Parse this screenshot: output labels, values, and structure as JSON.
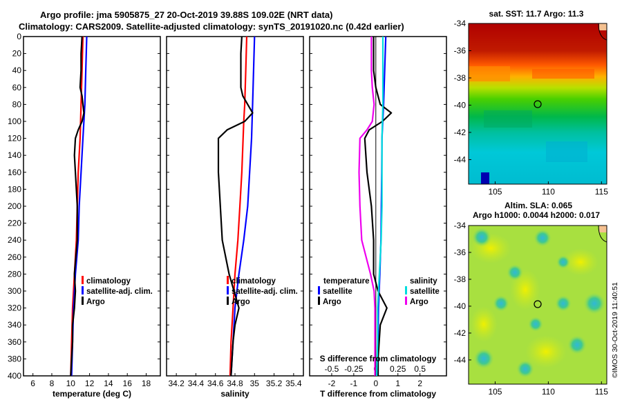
{
  "header": {
    "title_line1": "Argo profile: jma 5905875_27 20-Oct-2019 39.88S 109.02E (NRT data)",
    "title_line2": "Climatology: CARS2009. Satellite-adjusted climatology: synTS_20191020.nc (0.42d earlier)"
  },
  "footer": {
    "stamp": "©IMOS 30-Oct-2019 11:40:51"
  },
  "colors": {
    "climatology": "#ff0000",
    "satellite": "#0000ff",
    "argo": "#000000",
    "cyan": "#00dddd",
    "magenta": "#ee00ee"
  },
  "chart_data": [
    {
      "type": "line",
      "name": "temperature-profile",
      "xlabel": "temperature (deg C)",
      "xlim": [
        5,
        19.5
      ],
      "ylim": [
        400,
        0
      ],
      "xticks": [
        6,
        8,
        10,
        12,
        14,
        16,
        18
      ],
      "yticks": [
        0,
        20,
        40,
        60,
        80,
        100,
        120,
        140,
        160,
        180,
        200,
        220,
        240,
        260,
        280,
        300,
        320,
        340,
        360,
        380,
        400
      ],
      "legend": [
        "climatology",
        "satellite-adj. clim.",
        "Argo"
      ],
      "series": [
        {
          "name": "climatology",
          "color": "#ff0000",
          "points": [
            [
              11.3,
              0
            ],
            [
              11.2,
              40
            ],
            [
              11.1,
              80
            ],
            [
              11.0,
              120
            ],
            [
              10.8,
              160
            ],
            [
              10.7,
              200
            ],
            [
              10.6,
              240
            ],
            [
              10.4,
              280
            ],
            [
              10.2,
              320
            ],
            [
              10.1,
              360
            ],
            [
              10.0,
              400
            ]
          ]
        },
        {
          "name": "satellite-adj. clim.",
          "color": "#0000ff",
          "points": [
            [
              11.7,
              0
            ],
            [
              11.6,
              40
            ],
            [
              11.5,
              80
            ],
            [
              11.3,
              120
            ],
            [
              11.1,
              160
            ],
            [
              10.9,
              200
            ],
            [
              10.8,
              240
            ],
            [
              10.5,
              280
            ],
            [
              10.3,
              320
            ],
            [
              10.2,
              360
            ],
            [
              10.1,
              400
            ]
          ]
        },
        {
          "name": "Argo",
          "color": "#000000",
          "points": [
            [
              11.2,
              0
            ],
            [
              11.1,
              20
            ],
            [
              11.1,
              40
            ],
            [
              11.0,
              60
            ],
            [
              11.1,
              65
            ],
            [
              11.2,
              70
            ],
            [
              11.3,
              80
            ],
            [
              11.4,
              90
            ],
            [
              11.2,
              100
            ],
            [
              10.8,
              110
            ],
            [
              10.5,
              120
            ],
            [
              10.4,
              140
            ],
            [
              10.5,
              160
            ],
            [
              10.7,
              200
            ],
            [
              10.7,
              240
            ],
            [
              10.4,
              280
            ],
            [
              10.5,
              300
            ],
            [
              10.4,
              320
            ],
            [
              10.2,
              340
            ],
            [
              10.2,
              360
            ],
            [
              10.1,
              380
            ],
            [
              10.0,
              400
            ]
          ]
        }
      ]
    },
    {
      "type": "line",
      "name": "salinity-profile",
      "xlabel": "salinity",
      "xlim": [
        34.1,
        35.5
      ],
      "ylim": [
        400,
        0
      ],
      "xticks": [
        "34.2",
        "34.4",
        "34.6",
        "34.8",
        "35",
        "35.2",
        "35.4"
      ],
      "legend": [
        "climatology",
        "satellite-adj. clim.",
        "Argo"
      ],
      "series": [
        {
          "name": "climatology",
          "color": "#ff0000",
          "points": [
            [
              34.92,
              0
            ],
            [
              34.91,
              40
            ],
            [
              34.9,
              80
            ],
            [
              34.89,
              100
            ],
            [
              34.87,
              160
            ],
            [
              34.85,
              200
            ],
            [
              34.83,
              240
            ],
            [
              34.8,
              280
            ],
            [
              34.78,
              320
            ],
            [
              34.76,
              360
            ],
            [
              34.75,
              400
            ]
          ]
        },
        {
          "name": "satellite-adj. clim.",
          "color": "#0000ff",
          "points": [
            [
              35.0,
              0
            ],
            [
              34.99,
              40
            ],
            [
              34.98,
              80
            ],
            [
              34.97,
              120
            ],
            [
              34.95,
              160
            ],
            [
              34.93,
              200
            ],
            [
              34.89,
              240
            ],
            [
              34.84,
              280
            ],
            [
              34.8,
              320
            ],
            [
              34.78,
              360
            ],
            [
              34.76,
              400
            ]
          ]
        },
        {
          "name": "Argo",
          "color": "#000000",
          "points": [
            [
              34.87,
              0
            ],
            [
              34.86,
              20
            ],
            [
              34.86,
              40
            ],
            [
              34.86,
              60
            ],
            [
              34.88,
              70
            ],
            [
              34.93,
              80
            ],
            [
              34.98,
              90
            ],
            [
              34.9,
              100
            ],
            [
              34.72,
              110
            ],
            [
              34.63,
              120
            ],
            [
              34.63,
              160
            ],
            [
              34.65,
              200
            ],
            [
              34.67,
              240
            ],
            [
              34.74,
              280
            ],
            [
              34.79,
              300
            ],
            [
              34.84,
              320
            ],
            [
              34.8,
              340
            ],
            [
              34.78,
              360
            ],
            [
              34.76,
              400
            ]
          ]
        }
      ]
    },
    {
      "type": "line",
      "name": "difference-profile",
      "xlabel": "T difference from climatology",
      "xlabel_top": "S difference from climatology",
      "xlim": [
        -3,
        3.2
      ],
      "ylim": [
        400,
        0
      ],
      "xticks": [
        "-2",
        "-1",
        "0",
        "1",
        "2"
      ],
      "xticks_top": [
        "-0.5",
        "-0.25",
        "0",
        "0.25",
        "0.5"
      ],
      "legend_left_title": "temperature",
      "legend_left": [
        "satellite",
        "Argo"
      ],
      "legend_right_title": "salinity",
      "legend_right": [
        "satellite",
        "Argo"
      ],
      "series": [
        {
          "name": "T satellite",
          "color": "#0000ff",
          "points": [
            [
              0.45,
              0
            ],
            [
              0.4,
              40
            ],
            [
              0.35,
              80
            ],
            [
              0.28,
              120
            ],
            [
              0.27,
              160
            ],
            [
              0.25,
              200
            ],
            [
              0.23,
              240
            ],
            [
              0.18,
              280
            ],
            [
              0.12,
              320
            ],
            [
              0.1,
              360
            ],
            [
              0.1,
              400
            ]
          ]
        },
        {
          "name": "T Argo",
          "color": "#000000",
          "points": [
            [
              -0.1,
              0
            ],
            [
              -0.1,
              40
            ],
            [
              0.0,
              60
            ],
            [
              0.2,
              80
            ],
            [
              0.7,
              90
            ],
            [
              0.3,
              100
            ],
            [
              -0.3,
              110
            ],
            [
              -0.5,
              120
            ],
            [
              -0.4,
              160
            ],
            [
              -0.2,
              200
            ],
            [
              -0.1,
              240
            ],
            [
              -0.1,
              280
            ],
            [
              0.1,
              300
            ],
            [
              0.5,
              320
            ],
            [
              0.2,
              340
            ],
            [
              0.15,
              360
            ],
            [
              0.1,
              380
            ],
            [
              0.1,
              400
            ]
          ]
        },
        {
          "name": "S satellite",
          "color": "#00dddd",
          "points": [
            [
              0.08,
              0
            ],
            [
              0.08,
              40
            ],
            [
              0.08,
              80
            ],
            [
              0.07,
              120
            ],
            [
              0.07,
              160
            ],
            [
              0.07,
              200
            ],
            [
              0.06,
              240
            ],
            [
              0.04,
              280
            ],
            [
              0.02,
              320
            ],
            [
              0.02,
              360
            ],
            [
              0.01,
              400
            ]
          ]
        },
        {
          "name": "S Argo",
          "color": "#ee00ee",
          "points": [
            [
              -0.05,
              0
            ],
            [
              -0.05,
              40
            ],
            [
              -0.04,
              60
            ],
            [
              -0.02,
              80
            ],
            [
              -0.04,
              100
            ],
            [
              -0.1,
              110
            ],
            [
              -0.18,
              120
            ],
            [
              -0.19,
              160
            ],
            [
              -0.18,
              200
            ],
            [
              -0.16,
              240
            ],
            [
              -0.06,
              280
            ],
            [
              -0.02,
              300
            ],
            [
              -0.01,
              320
            ],
            [
              -0.01,
              400
            ]
          ]
        }
      ]
    },
    {
      "type": "heatmap",
      "name": "sst-map",
      "title": "sat. SST: 11.7 Argo: 11.3",
      "xticks": [
        "105",
        "110",
        "115"
      ],
      "yticks": [
        "-34",
        "-36",
        "-38",
        "-40",
        "-42",
        "-44"
      ],
      "xlim": [
        102.5,
        115.5
      ],
      "ylim": [
        -45.8,
        -34
      ],
      "argo_position": [
        109.02,
        -39.88
      ]
    },
    {
      "type": "heatmap",
      "name": "sla-map",
      "title_line1": "Altim. SLA: 0.065",
      "title_line2": "Argo h1000: 0.0044 h2000: 0.017",
      "xticks": [
        "105",
        "110",
        "115"
      ],
      "yticks": [
        "-34",
        "-36",
        "-38",
        "-40",
        "-42",
        "-44"
      ],
      "xlim": [
        102.5,
        115.5
      ],
      "ylim": [
        -45.8,
        -34
      ],
      "argo_position": [
        109.02,
        -39.88
      ]
    }
  ]
}
